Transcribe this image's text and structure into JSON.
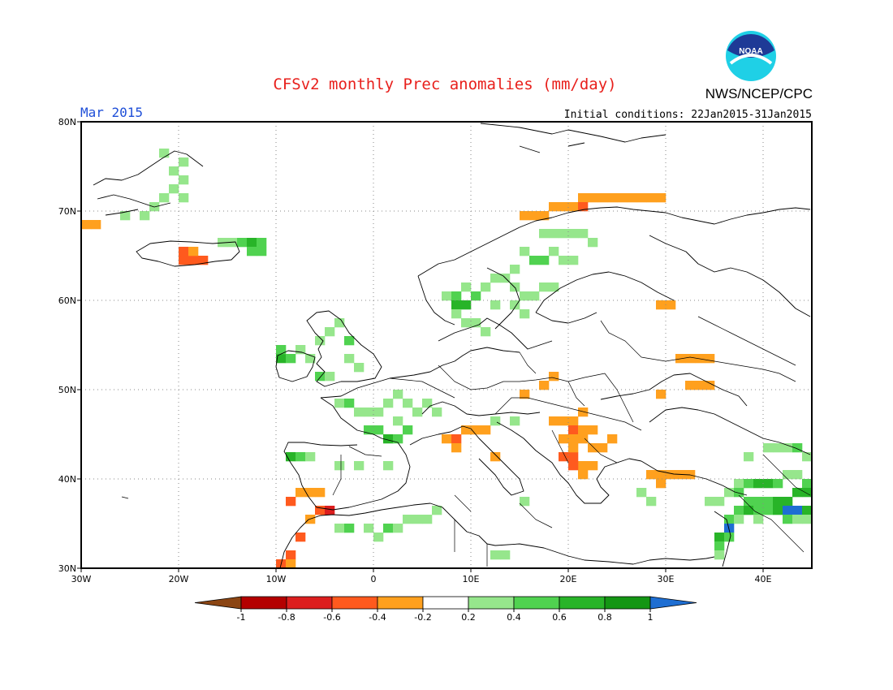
{
  "title": "CFSv2 monthly Prec anomalies (mm/day)",
  "month_label": "Mar 2015",
  "initial_conditions": "Initial conditions: 22Jan2015-31Jan2015",
  "agency": "NWS/NCEP/CPC",
  "logo_text": "NOAA",
  "map": {
    "lon_range": [
      -30,
      45
    ],
    "lat_range": [
      30,
      80
    ],
    "lon_ticks": [
      {
        "value": -30,
        "label": "30W"
      },
      {
        "value": -20,
        "label": "20W"
      },
      {
        "value": -10,
        "label": "10W"
      },
      {
        "value": 0,
        "label": "0"
      },
      {
        "value": 10,
        "label": "10E"
      },
      {
        "value": 20,
        "label": "20E"
      },
      {
        "value": 30,
        "label": "30E"
      },
      {
        "value": 40,
        "label": "40E"
      }
    ],
    "lat_ticks": [
      {
        "value": 30,
        "label": "30N"
      },
      {
        "value": 40,
        "label": "40N"
      },
      {
        "value": 50,
        "label": "50N"
      },
      {
        "value": 60,
        "label": "60N"
      },
      {
        "value": 70,
        "label": "70N"
      },
      {
        "value": 80,
        "label": "80N"
      }
    ],
    "grid": true,
    "anomaly_cells": [
      {
        "lon": -30,
        "lat": 68,
        "v": -0.3
      },
      {
        "lon": -29,
        "lat": 68,
        "v": -0.3
      },
      {
        "lon": -26,
        "lat": 69,
        "v": 0.3
      },
      {
        "lon": -24,
        "lat": 69,
        "v": 0.3
      },
      {
        "lon": -23,
        "lat": 70,
        "v": 0.3
      },
      {
        "lon": -22,
        "lat": 71,
        "v": 0.3
      },
      {
        "lon": -21,
        "lat": 72,
        "v": 0.3
      },
      {
        "lon": -20,
        "lat": 73,
        "v": 0.3
      },
      {
        "lon": -21,
        "lat": 74,
        "v": 0.3
      },
      {
        "lon": -20,
        "lat": 75,
        "v": 0.3
      },
      {
        "lon": -22,
        "lat": 76,
        "v": 0.3
      },
      {
        "lon": -20,
        "lat": 71,
        "v": 0.3
      },
      {
        "lon": -20,
        "lat": 64,
        "v": -0.5
      },
      {
        "lon": -19,
        "lat": 64,
        "v": -0.5
      },
      {
        "lon": -20,
        "lat": 65,
        "v": -0.5
      },
      {
        "lon": -19,
        "lat": 65,
        "v": -0.3
      },
      {
        "lon": -18,
        "lat": 64,
        "v": -0.5
      },
      {
        "lon": -16,
        "lat": 66,
        "v": 0.3
      },
      {
        "lon": -15,
        "lat": 66,
        "v": 0.3
      },
      {
        "lon": -14,
        "lat": 66,
        "v": 0.5
      },
      {
        "lon": -13,
        "lat": 66,
        "v": 0.7
      },
      {
        "lon": -12,
        "lat": 66,
        "v": 0.5
      },
      {
        "lon": -13,
        "lat": 65,
        "v": 0.5
      },
      {
        "lon": -12,
        "lat": 65,
        "v": 0.5
      },
      {
        "lon": -10,
        "lat": 53,
        "v": 0.7
      },
      {
        "lon": -9,
        "lat": 53,
        "v": 0.5
      },
      {
        "lon": -10,
        "lat": 54,
        "v": 0.5
      },
      {
        "lon": -8,
        "lat": 54,
        "v": 0.3
      },
      {
        "lon": -7,
        "lat": 53,
        "v": 0.3
      },
      {
        "lon": -6,
        "lat": 55,
        "v": 0.3
      },
      {
        "lon": -5,
        "lat": 56,
        "v": 0.3
      },
      {
        "lon": -4,
        "lat": 57,
        "v": 0.3
      },
      {
        "lon": -3,
        "lat": 55,
        "v": 0.5
      },
      {
        "lon": -3,
        "lat": 53,
        "v": 0.3
      },
      {
        "lon": -2,
        "lat": 52,
        "v": 0.3
      },
      {
        "lon": -6,
        "lat": 51,
        "v": 0.5
      },
      {
        "lon": -5,
        "lat": 51,
        "v": 0.3
      },
      {
        "lon": -4,
        "lat": 48,
        "v": 0.3
      },
      {
        "lon": -3,
        "lat": 48,
        "v": 0.5
      },
      {
        "lon": -2,
        "lat": 47,
        "v": 0.3
      },
      {
        "lon": -1,
        "lat": 47,
        "v": 0.3
      },
      {
        "lon": 0,
        "lat": 47,
        "v": 0.3
      },
      {
        "lon": 1,
        "lat": 48,
        "v": 0.3
      },
      {
        "lon": 2,
        "lat": 49,
        "v": 0.3
      },
      {
        "lon": 3,
        "lat": 48,
        "v": 0.3
      },
      {
        "lon": 4,
        "lat": 47,
        "v": 0.3
      },
      {
        "lon": 5,
        "lat": 48,
        "v": 0.3
      },
      {
        "lon": 6,
        "lat": 47,
        "v": 0.3
      },
      {
        "lon": -1,
        "lat": 45,
        "v": 0.5
      },
      {
        "lon": 0,
        "lat": 45,
        "v": 0.5
      },
      {
        "lon": 1,
        "lat": 44,
        "v": 0.7
      },
      {
        "lon": 2,
        "lat": 44,
        "v": 0.5
      },
      {
        "lon": 3,
        "lat": 45,
        "v": 0.5
      },
      {
        "lon": 2,
        "lat": 46,
        "v": 0.3
      },
      {
        "lon": -9,
        "lat": 42,
        "v": 0.7
      },
      {
        "lon": -8,
        "lat": 42,
        "v": 0.5
      },
      {
        "lon": -7,
        "lat": 42,
        "v": 0.3
      },
      {
        "lon": -4,
        "lat": 41,
        "v": 0.3
      },
      {
        "lon": -2,
        "lat": 41,
        "v": 0.3
      },
      {
        "lon": 1,
        "lat": 41,
        "v": 0.3
      },
      {
        "lon": -8,
        "lat": 38,
        "v": -0.3
      },
      {
        "lon": -7,
        "lat": 38,
        "v": -0.3
      },
      {
        "lon": -6,
        "lat": 38,
        "v": -0.3
      },
      {
        "lon": -9,
        "lat": 37,
        "v": -0.5
      },
      {
        "lon": -6,
        "lat": 36,
        "v": -0.5
      },
      {
        "lon": -5,
        "lat": 36,
        "v": -0.7
      },
      {
        "lon": -7,
        "lat": 35,
        "v": -0.3
      },
      {
        "lon": -8,
        "lat": 33,
        "v": -0.5
      },
      {
        "lon": -9,
        "lat": 31,
        "v": -0.5
      },
      {
        "lon": -10,
        "lat": 30,
        "v": -0.5
      },
      {
        "lon": -9,
        "lat": 30,
        "v": -0.3
      },
      {
        "lon": -4,
        "lat": 34,
        "v": 0.3
      },
      {
        "lon": -3,
        "lat": 34,
        "v": 0.5
      },
      {
        "lon": -1,
        "lat": 34,
        "v": 0.3
      },
      {
        "lon": 0,
        "lat": 33,
        "v": 0.3
      },
      {
        "lon": 1,
        "lat": 34,
        "v": 0.5
      },
      {
        "lon": 2,
        "lat": 34,
        "v": 0.3
      },
      {
        "lon": 3,
        "lat": 35,
        "v": 0.3
      },
      {
        "lon": 4,
        "lat": 35,
        "v": 0.3
      },
      {
        "lon": 5,
        "lat": 35,
        "v": 0.3
      },
      {
        "lon": 6,
        "lat": 36,
        "v": 0.3
      },
      {
        "lon": 7,
        "lat": 44,
        "v": -0.3
      },
      {
        "lon": 8,
        "lat": 44,
        "v": -0.5
      },
      {
        "lon": 9,
        "lat": 45,
        "v": -0.3
      },
      {
        "lon": 10,
        "lat": 45,
        "v": -0.3
      },
      {
        "lon": 11,
        "lat": 45,
        "v": -0.3
      },
      {
        "lon": 8,
        "lat": 43,
        "v": -0.3
      },
      {
        "lon": 12,
        "lat": 46,
        "v": 0.3
      },
      {
        "lon": 14,
        "lat": 46,
        "v": 0.3
      },
      {
        "lon": 12,
        "lat": 42,
        "v": -0.3
      },
      {
        "lon": 15,
        "lat": 37,
        "v": 0.3
      },
      {
        "lon": 12,
        "lat": 31,
        "v": 0.3
      },
      {
        "lon": 13,
        "lat": 31,
        "v": 0.3
      },
      {
        "lon": 17,
        "lat": 50,
        "v": -0.3
      },
      {
        "lon": 18,
        "lat": 51,
        "v": -0.3
      },
      {
        "lon": 15,
        "lat": 49,
        "v": -0.3
      },
      {
        "lon": 18,
        "lat": 46,
        "v": -0.3
      },
      {
        "lon": 19,
        "lat": 46,
        "v": -0.3
      },
      {
        "lon": 20,
        "lat": 46,
        "v": -0.3
      },
      {
        "lon": 21,
        "lat": 47,
        "v": -0.3
      },
      {
        "lon": 20,
        "lat": 45,
        "v": -0.5
      },
      {
        "lon": 21,
        "lat": 45,
        "v": -0.3
      },
      {
        "lon": 22,
        "lat": 45,
        "v": -0.3
      },
      {
        "lon": 19,
        "lat": 44,
        "v": -0.3
      },
      {
        "lon": 20,
        "lat": 44,
        "v": -0.3
      },
      {
        "lon": 21,
        "lat": 44,
        "v": -0.3
      },
      {
        "lon": 22,
        "lat": 43,
        "v": -0.3
      },
      {
        "lon": 23,
        "lat": 43,
        "v": -0.3
      },
      {
        "lon": 19,
        "lat": 42,
        "v": -0.5
      },
      {
        "lon": 20,
        "lat": 42,
        "v": -0.5
      },
      {
        "lon": 21,
        "lat": 41,
        "v": -0.3
      },
      {
        "lon": 20,
        "lat": 41,
        "v": -0.5
      },
      {
        "lon": 22,
        "lat": 41,
        "v": -0.3
      },
      {
        "lon": 21,
        "lat": 40,
        "v": -0.3
      },
      {
        "lon": 24,
        "lat": 44,
        "v": -0.3
      },
      {
        "lon": 20,
        "lat": 43,
        "v": -0.3
      },
      {
        "lon": 21,
        "lat": 71,
        "v": -0.3
      },
      {
        "lon": 22,
        "lat": 71,
        "v": -0.3
      },
      {
        "lon": 23,
        "lat": 71,
        "v": -0.3
      },
      {
        "lon": 24,
        "lat": 71,
        "v": -0.3
      },
      {
        "lon": 25,
        "lat": 71,
        "v": -0.3
      },
      {
        "lon": 26,
        "lat": 71,
        "v": -0.3
      },
      {
        "lon": 27,
        "lat": 71,
        "v": -0.3
      },
      {
        "lon": 28,
        "lat": 71,
        "v": -0.3
      },
      {
        "lon": 29,
        "lat": 71,
        "v": -0.3
      },
      {
        "lon": 15,
        "lat": 69,
        "v": -0.3
      },
      {
        "lon": 16,
        "lat": 69,
        "v": -0.3
      },
      {
        "lon": 17,
        "lat": 69,
        "v": -0.3
      },
      {
        "lon": 18,
        "lat": 70,
        "v": -0.3
      },
      {
        "lon": 19,
        "lat": 70,
        "v": -0.3
      },
      {
        "lon": 20,
        "lat": 70,
        "v": -0.3
      },
      {
        "lon": 21,
        "lat": 70,
        "v": -0.5
      },
      {
        "lon": 17,
        "lat": 67,
        "v": 0.3
      },
      {
        "lon": 18,
        "lat": 67,
        "v": 0.3
      },
      {
        "lon": 19,
        "lat": 67,
        "v": 0.3
      },
      {
        "lon": 20,
        "lat": 67,
        "v": 0.3
      },
      {
        "lon": 21,
        "lat": 67,
        "v": 0.3
      },
      {
        "lon": 22,
        "lat": 66,
        "v": 0.3
      },
      {
        "lon": 15,
        "lat": 65,
        "v": 0.3
      },
      {
        "lon": 16,
        "lat": 64,
        "v": 0.5
      },
      {
        "lon": 17,
        "lat": 64,
        "v": 0.5
      },
      {
        "lon": 18,
        "lat": 65,
        "v": 0.3
      },
      {
        "lon": 19,
        "lat": 64,
        "v": 0.3
      },
      {
        "lon": 20,
        "lat": 64,
        "v": 0.3
      },
      {
        "lon": 14,
        "lat": 63,
        "v": 0.3
      },
      {
        "lon": 13,
        "lat": 62,
        "v": 0.3
      },
      {
        "lon": 12,
        "lat": 62,
        "v": 0.3
      },
      {
        "lon": 14,
        "lat": 61,
        "v": 0.3
      },
      {
        "lon": 15,
        "lat": 60,
        "v": 0.3
      },
      {
        "lon": 16,
        "lat": 60,
        "v": 0.3
      },
      {
        "lon": 17,
        "lat": 61,
        "v": 0.3
      },
      {
        "lon": 18,
        "lat": 61,
        "v": 0.3
      },
      {
        "lon": 14,
        "lat": 59,
        "v": 0.3
      },
      {
        "lon": 15,
        "lat": 58,
        "v": 0.3
      },
      {
        "lon": 7,
        "lat": 60,
        "v": 0.3
      },
      {
        "lon": 8,
        "lat": 60,
        "v": 0.5
      },
      {
        "lon": 9,
        "lat": 59,
        "v": 0.7
      },
      {
        "lon": 8,
        "lat": 59,
        "v": 0.7
      },
      {
        "lon": 10,
        "lat": 60,
        "v": 0.5
      },
      {
        "lon": 11,
        "lat": 61,
        "v": 0.3
      },
      {
        "lon": 9,
        "lat": 61,
        "v": 0.3
      },
      {
        "lon": 12,
        "lat": 59,
        "v": 0.3
      },
      {
        "lon": 8,
        "lat": 58,
        "v": 0.3
      },
      {
        "lon": 9,
        "lat": 57,
        "v": 0.3
      },
      {
        "lon": 10,
        "lat": 57,
        "v": 0.3
      },
      {
        "lon": 11,
        "lat": 56,
        "v": 0.3
      },
      {
        "lon": 29,
        "lat": 59,
        "v": -0.3
      },
      {
        "lon": 30,
        "lat": 59,
        "v": -0.3
      },
      {
        "lon": 31,
        "lat": 53,
        "v": -0.3
      },
      {
        "lon": 32,
        "lat": 53,
        "v": -0.3
      },
      {
        "lon": 33,
        "lat": 53,
        "v": -0.3
      },
      {
        "lon": 34,
        "lat": 53,
        "v": -0.3
      },
      {
        "lon": 32,
        "lat": 50,
        "v": -0.3
      },
      {
        "lon": 33,
        "lat": 50,
        "v": -0.3
      },
      {
        "lon": 34,
        "lat": 50,
        "v": -0.3
      },
      {
        "lon": 29,
        "lat": 49,
        "v": -0.3
      },
      {
        "lon": 28,
        "lat": 40,
        "v": -0.3
      },
      {
        "lon": 29,
        "lat": 40,
        "v": -0.3
      },
      {
        "lon": 30,
        "lat": 40,
        "v": -0.3
      },
      {
        "lon": 31,
        "lat": 40,
        "v": -0.3
      },
      {
        "lon": 32,
        "lat": 40,
        "v": -0.3
      },
      {
        "lon": 29,
        "lat": 39,
        "v": -0.3
      },
      {
        "lon": 27,
        "lat": 38,
        "v": 0.3
      },
      {
        "lon": 28,
        "lat": 37,
        "v": 0.3
      },
      {
        "lon": 40,
        "lat": 43,
        "v": 0.3
      },
      {
        "lon": 41,
        "lat": 43,
        "v": 0.3
      },
      {
        "lon": 42,
        "lat": 43,
        "v": 0.3
      },
      {
        "lon": 43,
        "lat": 43,
        "v": 0.5
      },
      {
        "lon": 44,
        "lat": 42,
        "v": 0.3
      },
      {
        "lon": 38,
        "lat": 42,
        "v": 0.3
      },
      {
        "lon": 42,
        "lat": 40,
        "v": 0.3
      },
      {
        "lon": 43,
        "lat": 40,
        "v": 0.3
      },
      {
        "lon": 44,
        "lat": 39,
        "v": 0.5
      },
      {
        "lon": 37,
        "lat": 39,
        "v": 0.3
      },
      {
        "lon": 38,
        "lat": 39,
        "v": 0.5
      },
      {
        "lon": 39,
        "lat": 39,
        "v": 0.7
      },
      {
        "lon": 40,
        "lat": 39,
        "v": 0.7
      },
      {
        "lon": 41,
        "lat": 39,
        "v": 0.5
      },
      {
        "lon": 34,
        "lat": 37,
        "v": 0.3
      },
      {
        "lon": 35,
        "lat": 37,
        "v": 0.3
      },
      {
        "lon": 36,
        "lat": 38,
        "v": 0.3
      },
      {
        "lon": 37,
        "lat": 38,
        "v": 0.5
      },
      {
        "lon": 38,
        "lat": 37,
        "v": 0.5
      },
      {
        "lon": 39,
        "lat": 37,
        "v": 0.5
      },
      {
        "lon": 40,
        "lat": 37,
        "v": 0.5
      },
      {
        "lon": 41,
        "lat": 37,
        "v": 0.7
      },
      {
        "lon": 42,
        "lat": 37,
        "v": 0.7
      },
      {
        "lon": 43,
        "lat": 38,
        "v": 0.7
      },
      {
        "lon": 44,
        "lat": 38,
        "v": 0.7
      },
      {
        "lon": 37,
        "lat": 36,
        "v": 0.5
      },
      {
        "lon": 38,
        "lat": 36,
        "v": 0.7
      },
      {
        "lon": 39,
        "lat": 36,
        "v": 0.5
      },
      {
        "lon": 40,
        "lat": 36,
        "v": 0.5
      },
      {
        "lon": 41,
        "lat": 36,
        "v": 0.7
      },
      {
        "lon": 42,
        "lat": 36,
        "v": 1.1
      },
      {
        "lon": 43,
        "lat": 36,
        "v": 1.1
      },
      {
        "lon": 44,
        "lat": 36,
        "v": 0.7
      },
      {
        "lon": 36,
        "lat": 35,
        "v": 0.5
      },
      {
        "lon": 37,
        "lat": 35,
        "v": 0.3
      },
      {
        "lon": 39,
        "lat": 35,
        "v": 0.3
      },
      {
        "lon": 42,
        "lat": 35,
        "v": 0.5
      },
      {
        "lon": 43,
        "lat": 35,
        "v": 0.3
      },
      {
        "lon": 44,
        "lat": 35,
        "v": 0.3
      },
      {
        "lon": 36,
        "lat": 34,
        "v": 1.1
      },
      {
        "lon": 35,
        "lat": 33,
        "v": 0.7
      },
      {
        "lon": 36,
        "lat": 33,
        "v": 0.5
      },
      {
        "lon": 35,
        "lat": 32,
        "v": 0.5
      },
      {
        "lon": 35,
        "lat": 31,
        "v": 0.3
      }
    ]
  },
  "colorbar": {
    "colors": [
      "#8b4513",
      "#b40000",
      "#dc1e1e",
      "#ff5a1e",
      "#ffa01e",
      "#ffffff",
      "#96e68c",
      "#50d250",
      "#28b428",
      "#149614",
      "#1e6ed2"
    ],
    "labels": [
      "-1",
      "-0.8",
      "-0.6",
      "-0.4",
      "-0.2",
      "0.2",
      "0.4",
      "0.6",
      "0.8",
      "1"
    ],
    "thresholds": [
      -1,
      -0.8,
      -0.6,
      -0.4,
      -0.2,
      0.2,
      0.4,
      0.6,
      0.8,
      1
    ]
  }
}
